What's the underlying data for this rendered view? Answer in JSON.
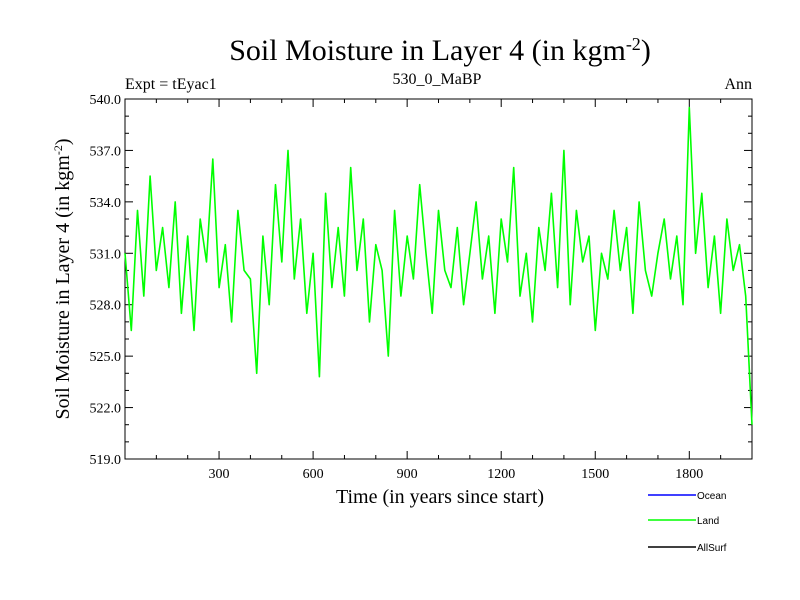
{
  "chart_data": {
    "type": "line",
    "title_main": "Soil Moisture in Layer 4 (in kgm",
    "title_sup": "-2",
    "title_end": ")",
    "subtitle_left": "Expt = tEyac1",
    "subtitle_center": "530_0_MaBP",
    "subtitle_right": "Ann",
    "xlabel": "Time (in years since start)",
    "ylabel_main": "Soil Moisture in Layer 4 (in kgm",
    "ylabel_sup": "-2",
    "ylabel_end": ")",
    "xlim": [
      0,
      2000
    ],
    "ylim": [
      519.0,
      540.0
    ],
    "xticks": [
      300,
      600,
      900,
      1200,
      1500,
      1800
    ],
    "yticks": [
      519.0,
      522.0,
      525.0,
      528.0,
      531.0,
      534.0,
      537.0,
      540.0
    ],
    "ytick_labels": [
      "519.0",
      "522.0",
      "525.0",
      "528.0",
      "531.0",
      "534.0",
      "537.0",
      "540.0"
    ],
    "legend": [
      {
        "name": "Ocean",
        "color": "#0000ff"
      },
      {
        "name": "Land",
        "color": "#00ff00"
      },
      {
        "name": "AllSurf",
        "color": "#000000"
      }
    ],
    "series": [
      {
        "name": "Land",
        "color": "#00ff00",
        "x": [
          0,
          20,
          40,
          60,
          80,
          100,
          120,
          140,
          160,
          180,
          200,
          220,
          240,
          260,
          280,
          300,
          320,
          340,
          360,
          380,
          400,
          420,
          440,
          460,
          480,
          500,
          520,
          540,
          560,
          580,
          600,
          620,
          640,
          660,
          680,
          700,
          720,
          740,
          760,
          780,
          800,
          820,
          840,
          860,
          880,
          900,
          920,
          940,
          960,
          980,
          1000,
          1020,
          1040,
          1060,
          1080,
          1100,
          1120,
          1140,
          1160,
          1180,
          1200,
          1220,
          1240,
          1260,
          1280,
          1300,
          1320,
          1340,
          1360,
          1380,
          1400,
          1420,
          1440,
          1460,
          1480,
          1500,
          1520,
          1540,
          1560,
          1580,
          1600,
          1620,
          1640,
          1660,
          1680,
          1700,
          1720,
          1740,
          1760,
          1780,
          1800,
          1820,
          1840,
          1860,
          1880,
          1900,
          1920,
          1940,
          1960,
          1980,
          2000
        ],
        "values": [
          531.0,
          526.5,
          533.5,
          528.5,
          535.5,
          530.0,
          532.5,
          529.0,
          534.0,
          527.5,
          532.0,
          526.5,
          533.0,
          530.5,
          536.5,
          529.0,
          531.5,
          527.0,
          533.5,
          530.0,
          529.5,
          524.0,
          532.0,
          528.0,
          535.0,
          530.5,
          537.0,
          529.5,
          533.0,
          527.5,
          531.0,
          523.8,
          534.5,
          529.0,
          532.5,
          528.5,
          536.0,
          530.0,
          533.0,
          527.0,
          531.5,
          530.0,
          525.0,
          533.5,
          528.5,
          532.0,
          529.5,
          535.0,
          531.0,
          527.5,
          533.5,
          530.0,
          529.0,
          532.5,
          528.0,
          531.0,
          534.0,
          529.5,
          532.0,
          527.5,
          533.0,
          530.5,
          536.0,
          528.5,
          531.0,
          527.0,
          532.5,
          530.0,
          534.5,
          529.0,
          537.0,
          528.0,
          533.5,
          530.5,
          532.0,
          526.5,
          531.0,
          529.5,
          533.5,
          530.0,
          532.5,
          527.5,
          534.0,
          530.0,
          528.5,
          531.0,
          533.0,
          529.5,
          532.0,
          528.0,
          539.5,
          531.0,
          534.5,
          529.0,
          532.0,
          527.5,
          533.0,
          530.0,
          531.5,
          528.5,
          521.0
        ]
      }
    ]
  }
}
